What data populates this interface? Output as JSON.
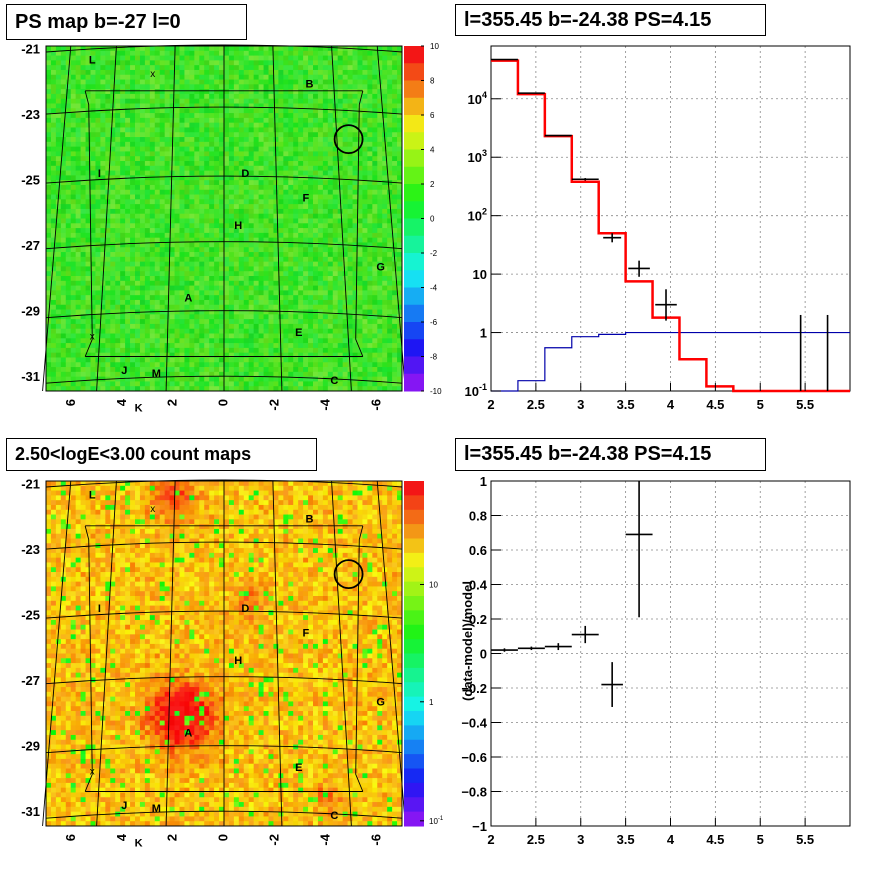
{
  "titles": {
    "ps_map": "PS map b=-27 l=0",
    "spectrum": "l=355.45 b=-24.38 PS=4.15",
    "count_map": "2.50<logE<3.00 count maps",
    "residual": "l=355.45 b=-24.38 PS=4.15"
  },
  "colors": {
    "data": "#000000",
    "model": "#ff0000",
    "background": "#0000aa"
  },
  "chart_data": [
    {
      "type": "heatmap",
      "title": "PS map b=-27 l=0",
      "y_ticks": [
        "-21",
        "-23",
        "-25",
        "-27",
        "-29",
        "-31"
      ],
      "x_ticks": [
        "6",
        "4",
        "2",
        "0",
        "-2",
        "-4",
        "-6"
      ],
      "colorbar_ticks": [
        "10",
        "8",
        "6",
        "4",
        "2",
        "0",
        "-2",
        "-4",
        "-6",
        "-8",
        "-10"
      ],
      "zlim": [
        -10,
        10
      ],
      "dominant_value": 0,
      "source_labels": [
        "L",
        "B",
        "I",
        "D",
        "F",
        "H",
        "G",
        "A",
        "E",
        "J",
        "M",
        "C",
        "K"
      ],
      "markers": [
        "x",
        "x"
      ],
      "circle_marker": "circle"
    },
    {
      "type": "line",
      "title": "l=355.45 b=-24.38 PS=4.15",
      "y_scale": "log",
      "xlim": [
        2,
        6
      ],
      "ylim": [
        0.1,
        80000
      ],
      "x_ticks": [
        "2",
        "2.5",
        "3",
        "3.5",
        "4",
        "4.5",
        "5",
        "5.5"
      ],
      "y_ticks": [
        "10^-1",
        "1",
        "10",
        "10^2",
        "10^3",
        "10^4"
      ],
      "grid": true,
      "series": [
        {
          "style": "red-step",
          "bin_edges": [
            2.0,
            2.3,
            2.6,
            2.9,
            3.2,
            3.5,
            3.8,
            4.1,
            4.4,
            4.7,
            6.0
          ],
          "values": [
            45000,
            12000,
            2300,
            380,
            50,
            7.5,
            1.8,
            0.35,
            0.12,
            0.1
          ]
        },
        {
          "style": "blue-step",
          "bin_edges": [
            2.0,
            2.3,
            2.6,
            2.9,
            3.2,
            3.5,
            6.0
          ],
          "values": [
            0.1,
            0.15,
            0.55,
            0.85,
            0.93,
            1.0
          ]
        },
        {
          "style": "black-data",
          "points": [
            {
              "x": 2.15,
              "y": 47000,
              "xerr": 0.15,
              "ylo": 46800,
              "yhi": 47200
            },
            {
              "x": 2.45,
              "y": 12500,
              "xerr": 0.15,
              "ylo": 12400,
              "yhi": 12600
            },
            {
              "x": 2.75,
              "y": 2350,
              "xerr": 0.15,
              "ylo": 2300,
              "yhi": 2400
            },
            {
              "x": 3.05,
              "y": 420,
              "xerr": 0.15,
              "ylo": 400,
              "yhi": 440
            },
            {
              "x": 3.35,
              "y": 42,
              "xerr": 0.1,
              "ylo": 35,
              "yhi": 50
            },
            {
              "x": 3.65,
              "y": 12.5,
              "xerr": 0.12,
              "ylo": 9,
              "yhi": 17
            },
            {
              "x": 3.95,
              "y": 3.0,
              "xerr": 0.12,
              "ylo": 1.6,
              "yhi": 5.5
            },
            {
              "x": 5.45,
              "y": 1.0,
              "xerr": 0.0,
              "ylo": 0.1,
              "yhi": 2.0
            },
            {
              "x": 5.75,
              "y": 1.0,
              "xerr": 0.0,
              "ylo": 0.1,
              "yhi": 2.0
            }
          ]
        }
      ]
    },
    {
      "type": "heatmap",
      "title": "2.50<logE<3.00 count maps",
      "y_ticks": [
        "-21",
        "-23",
        "-25",
        "-27",
        "-29",
        "-31"
      ],
      "x_ticks": [
        "6",
        "4",
        "2",
        "0",
        "-2",
        "-4",
        "-6"
      ],
      "colorbar_ticks": [
        "10",
        "1",
        "10^-1"
      ],
      "z_scale": "log",
      "source_labels": [
        "L",
        "B",
        "I",
        "D",
        "F",
        "H",
        "G",
        "A",
        "E",
        "J",
        "M",
        "C",
        "K"
      ],
      "markers": [
        "x",
        "x"
      ],
      "circle_marker": "circle"
    },
    {
      "type": "scatter",
      "title": "l=355.45 b=-24.38 PS=4.15",
      "ylabel": "(data-model)/model",
      "xlim": [
        2,
        6
      ],
      "ylim": [
        -1,
        1
      ],
      "x_ticks": [
        "2",
        "2.5",
        "3",
        "3.5",
        "4",
        "4.5",
        "5",
        "5.5"
      ],
      "y_ticks": [
        "1",
        "0.8",
        "0.6",
        "0.4",
        "0.2",
        "0",
        "−0.2",
        "−0.4",
        "−0.6",
        "−0.8",
        "−1"
      ],
      "grid": true,
      "points": [
        {
          "x": 2.15,
          "y": 0.02,
          "xerr": 0.15,
          "yerr": 0.01
        },
        {
          "x": 2.45,
          "y": 0.03,
          "xerr": 0.15,
          "yerr": 0.01
        },
        {
          "x": 2.75,
          "y": 0.04,
          "xerr": 0.15,
          "yerr": 0.02
        },
        {
          "x": 3.05,
          "y": 0.11,
          "xerr": 0.15,
          "yerr": 0.05
        },
        {
          "x": 3.35,
          "y": -0.18,
          "xerr": 0.12,
          "yerr": 0.13
        },
        {
          "x": 3.65,
          "y": 0.69,
          "xerr": 0.15,
          "yerr": 0.48
        }
      ]
    }
  ]
}
